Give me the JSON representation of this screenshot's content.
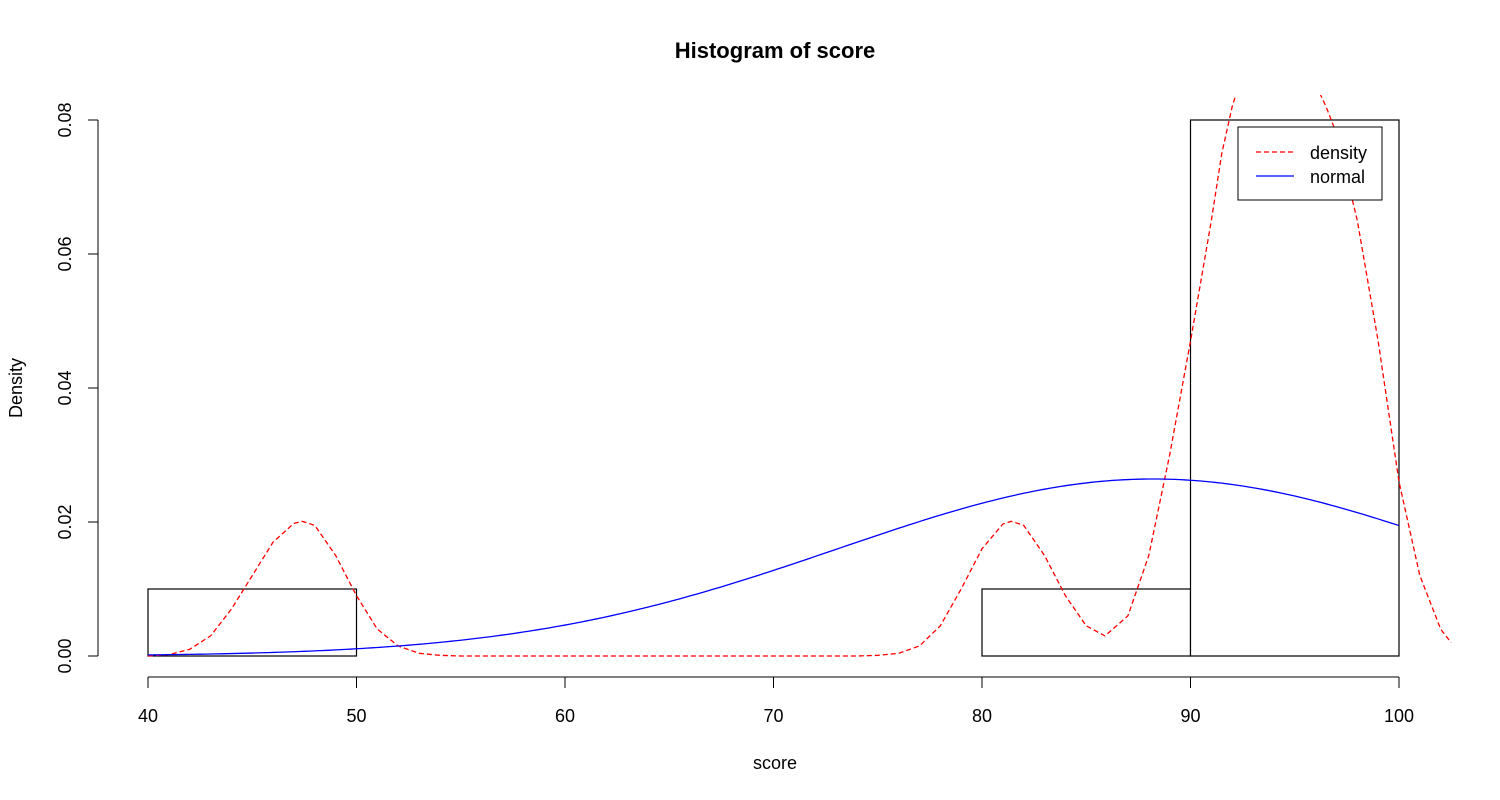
{
  "chart_data": {
    "type": "bar",
    "title": "Histogram of score",
    "xlabel": "score",
    "ylabel": "Density",
    "xlim": [
      40,
      100
    ],
    "ylim": [
      0,
      0.08
    ],
    "x_ticks": [
      40,
      50,
      60,
      70,
      80,
      90,
      100
    ],
    "y_ticks": [
      0.0,
      0.02,
      0.04,
      0.06,
      0.08
    ],
    "x_tick_labels": [
      "40",
      "50",
      "60",
      "70",
      "80",
      "90",
      "100"
    ],
    "y_tick_labels": [
      "0.00",
      "0.02",
      "0.04",
      "0.06",
      "0.08"
    ],
    "histogram": {
      "bins": [
        {
          "x0": 40,
          "x1": 50,
          "density": 0.01
        },
        {
          "x0": 80,
          "x1": 90,
          "density": 0.01
        },
        {
          "x0": 90,
          "x1": 100,
          "density": 0.08
        }
      ],
      "fill_color": "#ffffff",
      "stroke_color": "#000000"
    },
    "series": [
      {
        "name": "density",
        "color": "#ff0000",
        "dash": "dashed",
        "points": [
          [
            40.0,
            0.0
          ],
          [
            41.0,
            0.0002
          ],
          [
            42.0,
            0.001
          ],
          [
            43.0,
            0.003
          ],
          [
            44.0,
            0.007
          ],
          [
            45.0,
            0.012
          ],
          [
            46.0,
            0.017
          ],
          [
            47.0,
            0.0198
          ],
          [
            47.4,
            0.0201
          ],
          [
            48.0,
            0.0195
          ],
          [
            49.0,
            0.015
          ],
          [
            50.0,
            0.009
          ],
          [
            51.0,
            0.004
          ],
          [
            52.0,
            0.0015
          ],
          [
            53.0,
            0.0004
          ],
          [
            54.0,
            0.0001
          ],
          [
            55.0,
            0.0
          ],
          [
            60.0,
            0.0
          ],
          [
            65.0,
            0.0
          ],
          [
            70.0,
            0.0
          ],
          [
            74.0,
            0.0
          ],
          [
            75.0,
            0.0001
          ],
          [
            76.0,
            0.0004
          ],
          [
            77.0,
            0.0015
          ],
          [
            78.0,
            0.0045
          ],
          [
            79.0,
            0.01
          ],
          [
            80.0,
            0.016
          ],
          [
            81.0,
            0.0197
          ],
          [
            81.4,
            0.0201
          ],
          [
            82.0,
            0.0195
          ],
          [
            83.0,
            0.015
          ],
          [
            84.0,
            0.009
          ],
          [
            85.0,
            0.0045
          ],
          [
            85.9,
            0.003
          ],
          [
            87.0,
            0.006
          ],
          [
            88.0,
            0.015
          ],
          [
            89.0,
            0.03
          ],
          [
            90.0,
            0.047
          ],
          [
            91.0,
            0.065
          ],
          [
            91.5,
            0.075
          ],
          [
            92.0,
            0.082
          ],
          [
            92.2,
            0.084
          ]
        ],
        "points_after": [
          [
            96.2,
            0.084
          ],
          [
            96.5,
            0.082
          ],
          [
            97.0,
            0.078
          ],
          [
            98.0,
            0.065
          ],
          [
            99.0,
            0.047
          ],
          [
            100.0,
            0.026
          ],
          [
            101.0,
            0.012
          ],
          [
            102.0,
            0.004
          ],
          [
            102.5,
            0.002
          ]
        ]
      },
      {
        "name": "normal",
        "color": "#0000ff",
        "dash": "solid",
        "mean": 88.2,
        "sd": 15.1,
        "x_range": [
          40,
          100
        ]
      }
    ],
    "legend": {
      "position": "top-right",
      "entries": [
        {
          "label": "density",
          "color": "#ff0000",
          "dash": "dashed"
        },
        {
          "label": "normal",
          "color": "#0000ff",
          "dash": "solid"
        }
      ]
    },
    "grid": false
  }
}
